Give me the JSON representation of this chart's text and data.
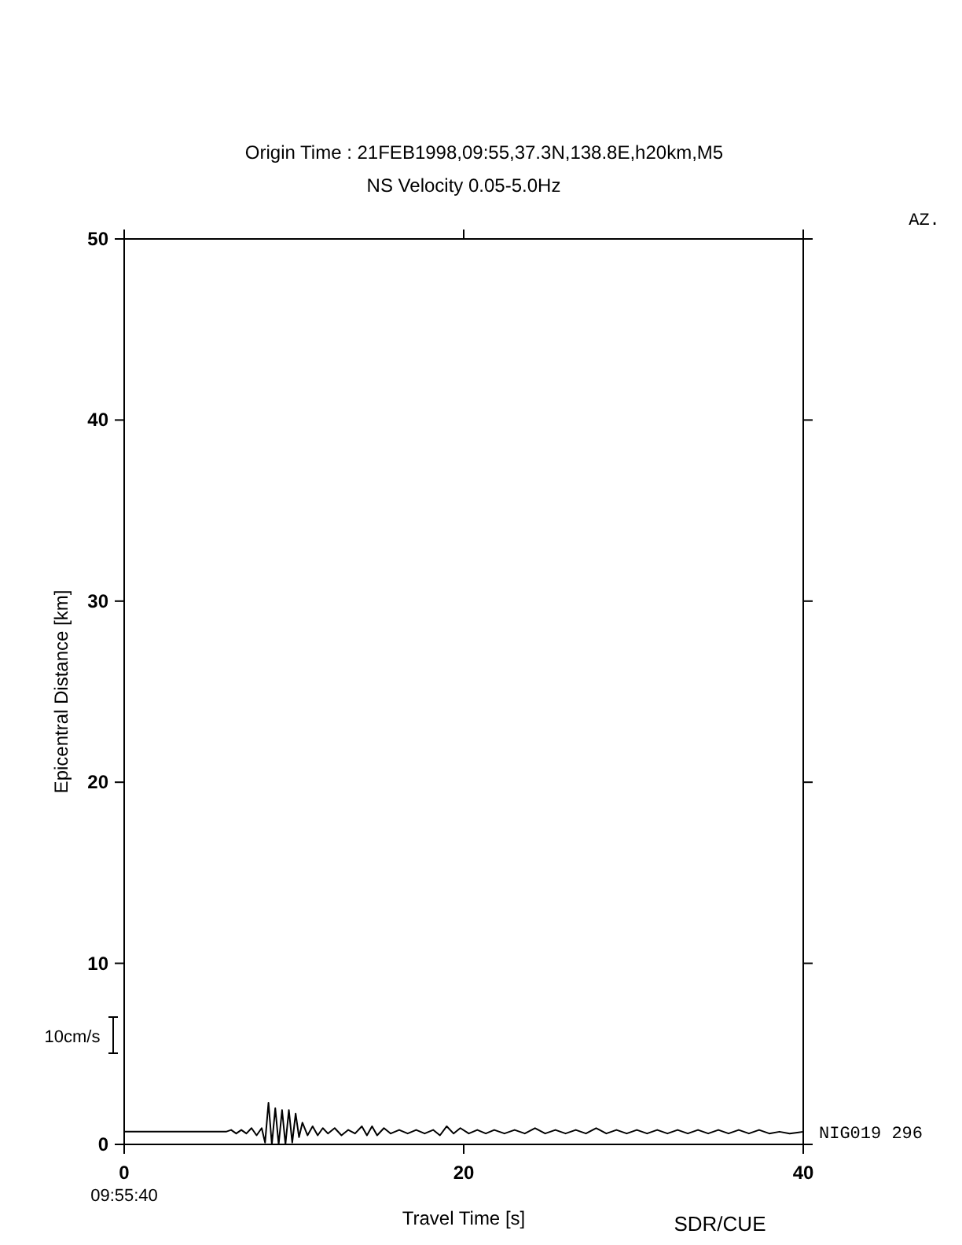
{
  "chart_data": {
    "type": "line",
    "title": "Origin Time : 21FEB1998,09:55,37.3N,138.8E,h20km,M5",
    "subtitle": "NS Velocity 0.05-5.0Hz",
    "xlabel": "Travel Time [s]",
    "ylabel": "Epicentral Distance [km]",
    "xlim": [
      0,
      40
    ],
    "xticks": [
      0,
      20,
      40
    ],
    "ylim": [
      0,
      50
    ],
    "yticks": [
      0,
      10,
      20,
      30,
      40,
      50
    ],
    "grid": false,
    "legend": "right",
    "marker": "none",
    "line_style": "solid",
    "annotations": [
      "09:55:40",
      "10cm/s",
      "AZ.",
      "SDR/CUE"
    ],
    "series": [
      {
        "name": "NIG019 296",
        "color": "#000000",
        "x": [
          0,
          6.0,
          6.3,
          6.6,
          6.9,
          7.2,
          7.5,
          7.8,
          8.1,
          8.3,
          8.5,
          8.7,
          8.9,
          9.1,
          9.3,
          9.5,
          9.7,
          9.9,
          10.1,
          10.3,
          10.5,
          10.8,
          11.1,
          11.4,
          11.7,
          12,
          12.4,
          12.8,
          13.2,
          13.6,
          14,
          14.3,
          14.6,
          14.9,
          15.3,
          15.7,
          16.2,
          16.7,
          17.2,
          17.7,
          18.2,
          18.6,
          19,
          19.4,
          19.8,
          20.3,
          20.8,
          21.3,
          21.8,
          22.4,
          23,
          23.6,
          24.2,
          24.8,
          25.4,
          26,
          26.6,
          27.2,
          27.8,
          28.4,
          29,
          29.6,
          30.2,
          30.8,
          31.4,
          32,
          32.6,
          33.2,
          33.8,
          34.4,
          35,
          35.6,
          36.2,
          36.8,
          37.4,
          38,
          38.6,
          39.2,
          40
        ],
        "values": [
          0.7,
          0.7,
          0.8,
          0.6,
          0.8,
          0.6,
          0.9,
          0.5,
          0.9,
          0.1,
          2.3,
          0.0,
          2.0,
          0.0,
          1.9,
          0.0,
          1.9,
          0.1,
          1.7,
          0.4,
          1.2,
          0.5,
          1.0,
          0.5,
          0.9,
          0.6,
          0.9,
          0.5,
          0.8,
          0.6,
          1.0,
          0.5,
          1.0,
          0.5,
          0.9,
          0.6,
          0.8,
          0.6,
          0.8,
          0.6,
          0.8,
          0.5,
          1.0,
          0.6,
          0.9,
          0.6,
          0.8,
          0.6,
          0.8,
          0.6,
          0.8,
          0.6,
          0.9,
          0.6,
          0.8,
          0.6,
          0.8,
          0.6,
          0.9,
          0.6,
          0.8,
          0.6,
          0.8,
          0.6,
          0.8,
          0.6,
          0.8,
          0.6,
          0.8,
          0.6,
          0.8,
          0.6,
          0.8,
          0.6,
          0.8,
          0.6,
          0.7,
          0.6,
          0.7
        ]
      }
    ]
  }
}
